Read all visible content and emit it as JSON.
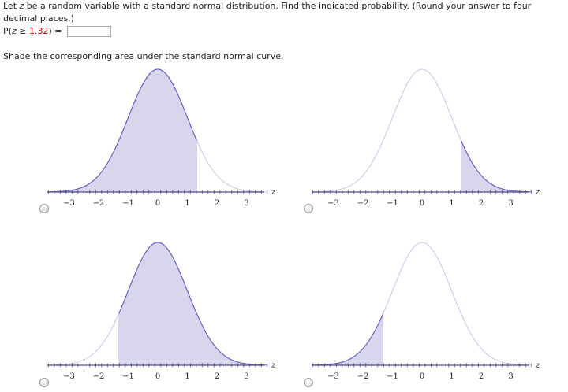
{
  "question": {
    "intro_1": "Let",
    "var": "z",
    "intro_2": "be a random variable with a standard normal distribution. Find the indicated probability. (Round your answer to four decimal places.)",
    "prob_prefix": "P(",
    "prob_var": "z",
    "prob_op": " ≥ ",
    "prob_value": "1.32",
    "prob_suffix": ") =",
    "answer_value": "",
    "shade_instruction": "Shade the corresponding area under the standard normal curve."
  },
  "axis": {
    "ticks": [
      "−3",
      "−2",
      "−1",
      "0",
      "1",
      "2",
      "3"
    ],
    "z_label": "z"
  },
  "options": [
    {
      "id": "a",
      "shade": "left of 1.32"
    },
    {
      "id": "b",
      "shade": "right of 1.32"
    },
    {
      "id": "c",
      "shade": "right of -1.32"
    },
    {
      "id": "d",
      "shade": "left of -1.32"
    }
  ],
  "colors": {
    "curve": "#6a63c4",
    "curve_light": "#c8c5ec",
    "fill": "#d8d6ed",
    "axis": "#4e4a8a"
  }
}
